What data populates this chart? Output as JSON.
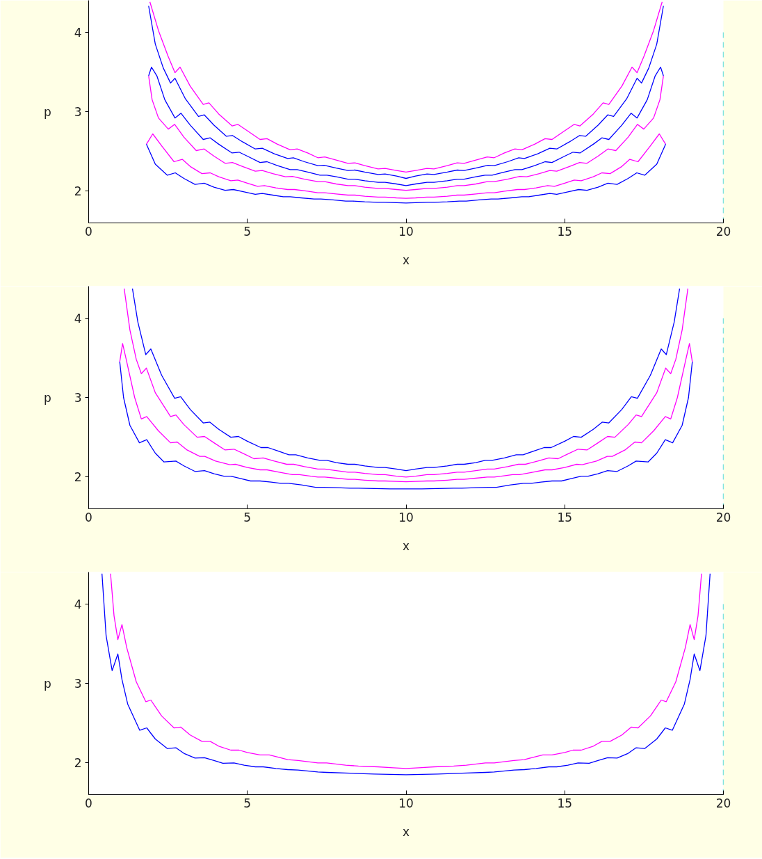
{
  "chart_data": [
    {
      "type": "line",
      "xlabel": "x",
      "ylabel": "p",
      "xlim": [
        0,
        20
      ],
      "ylim": [
        1.6,
        4.4
      ],
      "xticks": [
        0,
        5,
        10,
        15,
        20
      ],
      "yticks": [
        2,
        3,
        4
      ],
      "ref_lines": [
        {
          "axis": "x",
          "value": 20,
          "color": "#00c8c8",
          "line_style": "dashed"
        }
      ],
      "series": [
        {
          "color": "#ff00ff",
          "x": [
            1.93,
            2.2,
            2.5,
            2.72,
            2.88,
            3.2,
            3.61,
            3.79,
            4.1,
            4.52,
            4.7,
            5.0,
            5.4,
            5.62,
            5.95,
            6.35,
            6.57,
            6.9,
            7.22,
            7.44,
            7.8,
            8.17,
            8.39,
            8.7,
            9.12,
            9.34,
            9.7,
            10,
            10.3,
            10.66,
            10.88,
            11.3,
            11.61,
            11.83,
            12.2,
            12.56,
            12.78,
            13.1,
            13.43,
            13.65,
            14.05,
            14.38,
            14.6,
            15.0,
            15.3,
            15.48,
            15.9,
            16.21,
            16.39,
            16.8,
            17.12,
            17.28,
            17.5,
            17.8,
            18.07
          ],
          "values": [
            4.38,
            4.02,
            3.7,
            3.49,
            3.56,
            3.32,
            3.09,
            3.11,
            2.97,
            2.82,
            2.84,
            2.76,
            2.65,
            2.66,
            2.59,
            2.52,
            2.53,
            2.48,
            2.42,
            2.43,
            2.39,
            2.35,
            2.355,
            2.32,
            2.28,
            2.285,
            2.26,
            2.24,
            2.26,
            2.285,
            2.28,
            2.32,
            2.355,
            2.35,
            2.39,
            2.43,
            2.42,
            2.48,
            2.53,
            2.52,
            2.59,
            2.66,
            2.65,
            2.76,
            2.84,
            2.82,
            2.97,
            3.11,
            3.09,
            3.32,
            3.56,
            3.49,
            3.7,
            4.02,
            4.38
          ]
        },
        {
          "color": "#0000ff",
          "x": [
            1.89,
            2.1,
            2.35,
            2.58,
            2.72,
            3.05,
            3.46,
            3.64,
            3.95,
            4.34,
            4.53,
            4.85,
            5.25,
            5.47,
            5.85,
            6.27,
            6.45,
            6.8,
            7.22,
            7.42,
            7.8,
            8.17,
            8.39,
            8.7,
            9.12,
            9.34,
            9.7,
            10,
            10.3,
            10.66,
            10.88,
            11.3,
            11.61,
            11.83,
            12.2,
            12.58,
            12.78,
            13.2,
            13.55,
            13.73,
            14.15,
            14.53,
            14.75,
            15.15,
            15.47,
            15.66,
            16.05,
            16.36,
            16.54,
            16.95,
            17.28,
            17.42,
            17.65,
            17.9,
            18.11
          ],
          "values": [
            4.33,
            3.85,
            3.55,
            3.36,
            3.42,
            3.16,
            2.94,
            2.96,
            2.83,
            2.69,
            2.7,
            2.62,
            2.53,
            2.54,
            2.47,
            2.41,
            2.42,
            2.37,
            2.32,
            2.325,
            2.29,
            2.26,
            2.265,
            2.24,
            2.21,
            2.215,
            2.19,
            2.16,
            2.19,
            2.215,
            2.21,
            2.24,
            2.265,
            2.26,
            2.29,
            2.325,
            2.32,
            2.37,
            2.42,
            2.41,
            2.47,
            2.54,
            2.53,
            2.62,
            2.7,
            2.69,
            2.83,
            2.96,
            2.94,
            3.16,
            3.42,
            3.36,
            3.55,
            3.85,
            4.33
          ]
        },
        {
          "color": "#0000ff",
          "x": [
            1.89,
            1.98,
            2.15,
            2.4,
            2.72,
            2.91,
            3.2,
            3.61,
            3.83,
            4.1,
            4.52,
            4.74,
            5.0,
            5.4,
            5.62,
            5.95,
            6.35,
            6.57,
            6.9,
            7.29,
            7.51,
            7.8,
            8.17,
            8.39,
            8.7,
            9.12,
            9.34,
            9.7,
            10,
            10.3,
            10.66,
            10.88,
            11.3,
            11.61,
            11.83,
            12.2,
            12.49,
            12.71,
            13.1,
            13.43,
            13.65,
            14.05,
            14.38,
            14.6,
            15.0,
            15.26,
            15.48,
            15.9,
            16.17,
            16.39,
            16.8,
            17.09,
            17.28,
            17.6,
            17.85,
            18.02,
            18.11
          ],
          "values": [
            3.45,
            3.56,
            3.45,
            3.15,
            2.92,
            2.98,
            2.83,
            2.65,
            2.67,
            2.59,
            2.48,
            2.49,
            2.44,
            2.36,
            2.37,
            2.32,
            2.27,
            2.27,
            2.24,
            2.2,
            2.2,
            2.18,
            2.15,
            2.15,
            2.13,
            2.11,
            2.11,
            2.09,
            2.07,
            2.09,
            2.11,
            2.11,
            2.13,
            2.15,
            2.15,
            2.18,
            2.2,
            2.2,
            2.24,
            2.27,
            2.27,
            2.32,
            2.37,
            2.36,
            2.44,
            2.49,
            2.48,
            2.59,
            2.67,
            2.65,
            2.83,
            2.98,
            2.92,
            3.15,
            3.45,
            3.56,
            3.45
          ]
        },
        {
          "color": "#ff00ff",
          "x": [
            1.89,
            2.0,
            2.2,
            2.51,
            2.71,
            3.0,
            3.39,
            3.64,
            3.95,
            4.3,
            4.53,
            4.85,
            5.25,
            5.47,
            5.8,
            6.2,
            6.42,
            6.8,
            7.22,
            7.44,
            7.8,
            8.17,
            8.39,
            8.7,
            9.11,
            9.34,
            9.7,
            10,
            10.3,
            10.66,
            10.89,
            11.3,
            11.61,
            11.83,
            12.2,
            12.56,
            12.78,
            13.2,
            13.58,
            13.8,
            14.2,
            14.53,
            14.75,
            15.15,
            15.47,
            15.7,
            16.05,
            16.36,
            16.61,
            17.0,
            17.29,
            17.49,
            17.8,
            18.0,
            18.11
          ],
          "values": [
            3.45,
            3.15,
            2.92,
            2.78,
            2.84,
            2.68,
            2.51,
            2.53,
            2.44,
            2.35,
            2.36,
            2.31,
            2.25,
            2.26,
            2.22,
            2.18,
            2.185,
            2.15,
            2.12,
            2.12,
            2.09,
            2.07,
            2.07,
            2.05,
            2.035,
            2.035,
            2.02,
            2.01,
            2.02,
            2.035,
            2.035,
            2.05,
            2.07,
            2.07,
            2.09,
            2.12,
            2.12,
            2.15,
            2.185,
            2.18,
            2.22,
            2.26,
            2.25,
            2.31,
            2.36,
            2.35,
            2.44,
            2.53,
            2.51,
            2.68,
            2.84,
            2.78,
            2.92,
            3.15,
            3.45
          ]
        },
        {
          "color": "#ff00ff",
          "x": [
            1.82,
            2.02,
            2.3,
            2.69,
            2.95,
            3.2,
            3.57,
            3.83,
            4.1,
            4.48,
            4.7,
            5.0,
            5.32,
            5.54,
            5.9,
            6.27,
            6.49,
            6.9,
            7.22,
            7.44,
            7.8,
            8.17,
            8.39,
            8.7,
            9.12,
            9.34,
            9.7,
            10,
            10.3,
            10.66,
            10.88,
            11.3,
            11.61,
            11.83,
            12.2,
            12.56,
            12.78,
            13.1,
            13.51,
            13.73,
            14.1,
            14.46,
            14.68,
            15.0,
            15.3,
            15.52,
            15.9,
            16.17,
            16.43,
            16.8,
            17.05,
            17.31,
            17.7,
            17.98,
            18.18
          ],
          "values": [
            2.59,
            2.72,
            2.57,
            2.37,
            2.4,
            2.31,
            2.22,
            2.23,
            2.18,
            2.13,
            2.14,
            2.1,
            2.06,
            2.07,
            2.04,
            2.02,
            2.02,
            2.0,
            1.98,
            1.98,
            1.965,
            1.95,
            1.95,
            1.935,
            1.925,
            1.925,
            1.915,
            1.91,
            1.915,
            1.925,
            1.925,
            1.935,
            1.95,
            1.95,
            1.965,
            1.98,
            1.98,
            2.0,
            2.02,
            2.02,
            2.04,
            2.07,
            2.06,
            2.1,
            2.14,
            2.13,
            2.18,
            2.23,
            2.22,
            2.31,
            2.4,
            2.37,
            2.57,
            2.72,
            2.59
          ]
        },
        {
          "color": "#0000ff",
          "x": [
            1.82,
            2.1,
            2.48,
            2.73,
            3.0,
            3.35,
            3.64,
            3.95,
            4.3,
            4.56,
            4.9,
            5.25,
            5.47,
            5.8,
            6.13,
            6.35,
            6.7,
            7.1,
            7.32,
            7.7,
            8.1,
            8.32,
            8.7,
            9.1,
            9.32,
            9.7,
            10,
            10.3,
            10.68,
            10.9,
            11.3,
            11.68,
            11.9,
            12.3,
            12.68,
            12.9,
            13.3,
            13.65,
            13.87,
            14.2,
            14.53,
            14.75,
            15.1,
            15.44,
            15.7,
            16.05,
            16.36,
            16.65,
            17.0,
            17.27,
            17.52,
            17.9,
            18.18
          ],
          "values": [
            2.59,
            2.34,
            2.2,
            2.23,
            2.16,
            2.085,
            2.1,
            2.05,
            2.01,
            2.02,
            1.99,
            1.96,
            1.97,
            1.95,
            1.93,
            1.93,
            1.915,
            1.9,
            1.9,
            1.89,
            1.875,
            1.875,
            1.865,
            1.86,
            1.86,
            1.855,
            1.85,
            1.855,
            1.86,
            1.86,
            1.865,
            1.875,
            1.875,
            1.89,
            1.9,
            1.9,
            1.915,
            1.93,
            1.93,
            1.95,
            1.97,
            1.96,
            1.99,
            2.02,
            2.01,
            2.05,
            2.1,
            2.085,
            2.16,
            2.23,
            2.2,
            2.34,
            2.59
          ]
        }
      ]
    },
    {
      "type": "line",
      "xlabel": "x",
      "ylabel": "p",
      "xlim": [
        0,
        20
      ],
      "ylim": [
        1.6,
        4.4
      ],
      "xticks": [
        0,
        5,
        10,
        15,
        20
      ],
      "yticks": [
        2,
        3,
        4
      ],
      "ref_lines": [
        {
          "axis": "x",
          "value": 20,
          "color": "#00c8c8",
          "line_style": "dashed"
        }
      ],
      "series": [
        {
          "color": "#0000ff",
          "x": [
            1.38,
            1.55,
            1.8,
            1.96,
            2.3,
            2.71,
            2.9,
            3.2,
            3.61,
            3.82,
            4.1,
            4.48,
            4.72,
            5.0,
            5.43,
            5.65,
            5.95,
            6.31,
            6.53,
            6.9,
            7.29,
            7.51,
            7.8,
            8.17,
            8.39,
            8.7,
            9.12,
            9.34,
            9.7,
            10,
            10.3,
            10.66,
            10.88,
            11.3,
            11.61,
            11.83,
            12.2,
            12.49,
            12.71,
            13.1,
            13.47,
            13.69,
            14.05,
            14.35,
            14.57,
            15.0,
            15.28,
            15.52,
            15.9,
            16.18,
            16.39,
            16.8,
            17.1,
            17.29,
            17.7,
            18.04,
            18.2,
            18.45,
            18.62
          ],
          "values": [
            4.37,
            3.95,
            3.54,
            3.61,
            3.28,
            2.99,
            3.01,
            2.85,
            2.68,
            2.69,
            2.6,
            2.5,
            2.51,
            2.45,
            2.37,
            2.37,
            2.33,
            2.28,
            2.28,
            2.24,
            2.21,
            2.21,
            2.18,
            2.16,
            2.16,
            2.14,
            2.12,
            2.12,
            2.1,
            2.08,
            2.1,
            2.12,
            2.12,
            2.14,
            2.16,
            2.16,
            2.18,
            2.21,
            2.21,
            2.24,
            2.28,
            2.28,
            2.33,
            2.37,
            2.37,
            2.45,
            2.51,
            2.5,
            2.6,
            2.69,
            2.68,
            2.85,
            3.01,
            2.99,
            3.28,
            3.61,
            3.54,
            3.95,
            4.37
          ]
        },
        {
          "color": "#ff00ff",
          "x": [
            1.12,
            1.3,
            1.5,
            1.66,
            1.82,
            2.1,
            2.58,
            2.75,
            3.0,
            3.42,
            3.65,
            3.95,
            4.3,
            4.58,
            4.9,
            5.21,
            5.5,
            5.85,
            6.24,
            6.46,
            6.8,
            7.22,
            7.44,
            7.8,
            8.17,
            8.39,
            8.7,
            9.12,
            9.34,
            9.7,
            10,
            10.3,
            10.66,
            10.88,
            11.3,
            11.61,
            11.83,
            12.2,
            12.56,
            12.78,
            13.2,
            13.54,
            13.76,
            14.15,
            14.5,
            14.79,
            15.1,
            15.42,
            15.7,
            16.05,
            16.35,
            16.58,
            17.0,
            17.25,
            17.42,
            17.9,
            18.18,
            18.34,
            18.5,
            18.7,
            18.88
          ],
          "values": [
            4.37,
            3.85,
            3.48,
            3.3,
            3.37,
            3.06,
            2.76,
            2.78,
            2.66,
            2.5,
            2.51,
            2.43,
            2.34,
            2.35,
            2.29,
            2.23,
            2.24,
            2.2,
            2.16,
            2.16,
            2.13,
            2.1,
            2.1,
            2.08,
            2.06,
            2.06,
            2.045,
            2.03,
            2.03,
            2.01,
            2.0,
            2.01,
            2.03,
            2.03,
            2.045,
            2.06,
            2.06,
            2.08,
            2.1,
            2.1,
            2.13,
            2.16,
            2.16,
            2.2,
            2.24,
            2.23,
            2.29,
            2.35,
            2.34,
            2.43,
            2.51,
            2.5,
            2.66,
            2.78,
            2.76,
            3.06,
            3.37,
            3.3,
            3.48,
            3.85,
            4.37
          ]
        },
        {
          "color": "#ff00ff",
          "x": [
            0.98,
            1.07,
            1.2,
            1.45,
            1.66,
            1.83,
            2.2,
            2.58,
            2.79,
            3.1,
            3.5,
            3.66,
            4.0,
            4.45,
            4.62,
            5.0,
            5.4,
            5.62,
            6.0,
            6.42,
            6.64,
            7.0,
            7.22,
            7.44,
            7.8,
            8.17,
            8.39,
            8.7,
            9.12,
            9.34,
            9.7,
            10,
            10.3,
            10.66,
            10.88,
            11.3,
            11.61,
            11.83,
            12.2,
            12.56,
            12.78,
            13.0,
            13.36,
            13.58,
            14.0,
            14.38,
            14.6,
            15.0,
            15.38,
            15.55,
            16.0,
            16.34,
            16.5,
            16.9,
            17.21,
            17.42,
            17.8,
            18.17,
            18.34,
            18.55,
            18.8,
            18.93,
            19.02
          ],
          "values": [
            3.45,
            3.68,
            3.45,
            3.0,
            2.73,
            2.76,
            2.58,
            2.43,
            2.44,
            2.34,
            2.26,
            2.26,
            2.2,
            2.155,
            2.16,
            2.12,
            2.09,
            2.09,
            2.06,
            2.03,
            2.03,
            2.01,
            2.0,
            2.0,
            1.985,
            1.97,
            1.97,
            1.96,
            1.95,
            1.95,
            1.945,
            1.94,
            1.945,
            1.95,
            1.95,
            1.96,
            1.97,
            1.97,
            1.985,
            2.0,
            2.0,
            2.01,
            2.03,
            2.03,
            2.06,
            2.09,
            2.09,
            2.12,
            2.16,
            2.155,
            2.2,
            2.26,
            2.26,
            2.34,
            2.44,
            2.43,
            2.58,
            2.76,
            2.73,
            3.0,
            3.45,
            3.68,
            3.45
          ]
        },
        {
          "color": "#0000ff",
          "x": [
            0.98,
            1.1,
            1.3,
            1.6,
            1.83,
            2.1,
            2.37,
            2.75,
            3.0,
            3.35,
            3.65,
            3.95,
            4.26,
            4.48,
            4.8,
            5.1,
            5.4,
            5.75,
            6.05,
            6.3,
            6.7,
            7.15,
            7.4,
            7.8,
            8.24,
            8.5,
            9.0,
            9.5,
            10,
            10.5,
            11.0,
            11.5,
            11.76,
            12.2,
            12.6,
            12.85,
            13.3,
            13.7,
            13.95,
            14.25,
            14.6,
            14.9,
            15.2,
            15.52,
            15.74,
            16.05,
            16.35,
            16.65,
            17.0,
            17.25,
            17.63,
            17.9,
            18.17,
            18.4,
            18.7,
            18.9,
            19.02
          ],
          "values": [
            3.45,
            3.0,
            2.65,
            2.43,
            2.47,
            2.3,
            2.19,
            2.2,
            2.14,
            2.07,
            2.08,
            2.04,
            2.01,
            2.01,
            1.98,
            1.95,
            1.95,
            1.935,
            1.92,
            1.92,
            1.9,
            1.87,
            1.87,
            1.865,
            1.86,
            1.86,
            1.855,
            1.85,
            1.85,
            1.85,
            1.855,
            1.86,
            1.86,
            1.865,
            1.87,
            1.87,
            1.9,
            1.92,
            1.92,
            1.935,
            1.95,
            1.95,
            1.98,
            2.01,
            2.01,
            2.04,
            2.08,
            2.07,
            2.14,
            2.2,
            2.19,
            2.3,
            2.47,
            2.43,
            2.65,
            3.0,
            3.45
          ]
        }
      ]
    },
    {
      "type": "line",
      "xlabel": "x",
      "ylabel": "p",
      "xlim": [
        0,
        20
      ],
      "ylim": [
        1.6,
        4.4
      ],
      "xticks": [
        0,
        5,
        10,
        15,
        20
      ],
      "yticks": [
        2,
        3,
        4
      ],
      "ref_lines": [
        {
          "axis": "x",
          "value": 20,
          "color": "#00c8c8",
          "line_style": "dashed"
        }
      ],
      "series": [
        {
          "color": "#ff00ff",
          "x": [
            0.69,
            0.8,
            0.92,
            1.05,
            1.2,
            1.5,
            1.8,
            1.96,
            2.3,
            2.69,
            2.9,
            3.2,
            3.57,
            3.83,
            4.1,
            4.48,
            4.74,
            5.0,
            5.4,
            5.69,
            6.0,
            6.27,
            6.6,
            7.0,
            7.22,
            7.5,
            8.1,
            8.5,
            9.12,
            9.5,
            10,
            10.5,
            10.88,
            11.5,
            11.9,
            12.5,
            12.78,
            13.0,
            13.4,
            13.73,
            14.0,
            14.31,
            14.6,
            15.0,
            15.26,
            15.52,
            15.9,
            16.17,
            16.43,
            16.8,
            17.1,
            17.31,
            17.7,
            18.04,
            18.2,
            18.5,
            18.8,
            18.95,
            19.08,
            19.2,
            19.31
          ],
          "values": [
            4.38,
            3.85,
            3.55,
            3.74,
            3.45,
            3.02,
            2.77,
            2.79,
            2.59,
            2.44,
            2.45,
            2.35,
            2.27,
            2.27,
            2.21,
            2.16,
            2.16,
            2.13,
            2.1,
            2.1,
            2.07,
            2.04,
            2.03,
            2.01,
            2.0,
            2.0,
            1.97,
            1.96,
            1.95,
            1.94,
            1.93,
            1.94,
            1.95,
            1.96,
            1.97,
            2.0,
            2.0,
            2.01,
            2.03,
            2.04,
            2.07,
            2.1,
            2.1,
            2.13,
            2.16,
            2.16,
            2.21,
            2.27,
            2.27,
            2.35,
            2.45,
            2.44,
            2.59,
            2.79,
            2.77,
            3.02,
            3.45,
            3.74,
            3.55,
            3.85,
            4.38
          ]
        },
        {
          "color": "#0000ff",
          "x": [
            0.42,
            0.55,
            0.74,
            0.92,
            1.05,
            1.23,
            1.61,
            1.83,
            2.1,
            2.48,
            2.75,
            3.0,
            3.35,
            3.65,
            3.95,
            4.23,
            4.58,
            4.9,
            5.25,
            5.5,
            5.9,
            6.27,
            6.6,
            7.22,
            7.5,
            8.24,
            9.0,
            10,
            11.0,
            11.76,
            12.5,
            12.78,
            13.4,
            13.73,
            14.1,
            14.5,
            14.75,
            15.1,
            15.42,
            15.77,
            16.05,
            16.35,
            16.65,
            17.0,
            17.25,
            17.52,
            17.9,
            18.17,
            18.39,
            18.77,
            18.95,
            19.08,
            19.26,
            19.45,
            19.58
          ],
          "values": [
            4.38,
            3.6,
            3.16,
            3.37,
            3.05,
            2.74,
            2.41,
            2.44,
            2.3,
            2.18,
            2.19,
            2.12,
            2.06,
            2.065,
            2.03,
            1.995,
            2.0,
            1.97,
            1.95,
            1.95,
            1.93,
            1.915,
            1.91,
            1.885,
            1.88,
            1.87,
            1.86,
            1.85,
            1.86,
            1.87,
            1.88,
            1.885,
            1.91,
            1.915,
            1.93,
            1.95,
            1.95,
            1.97,
            2.0,
            1.995,
            2.03,
            2.065,
            2.06,
            2.12,
            2.19,
            2.18,
            2.3,
            2.44,
            2.41,
            2.74,
            3.05,
            3.37,
            3.16,
            3.6,
            4.38
          ]
        }
      ]
    }
  ]
}
